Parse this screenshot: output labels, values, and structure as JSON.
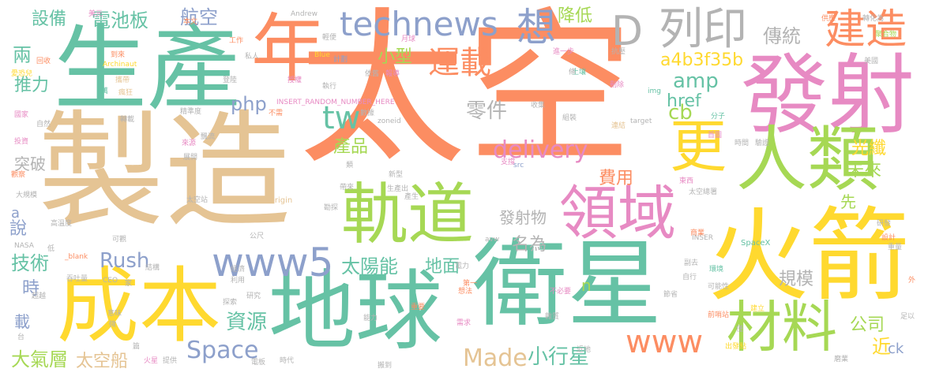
{
  "palette": [
    "#fc8d62",
    "#66c2a5",
    "#e5c494",
    "#a6d854",
    "#e78ac3",
    "#ffd92f",
    "#8da0cb",
    "#b3b3b3"
  ],
  "words": [
    {
      "text": "太空",
      "color": "#fc8d62"
    },
    {
      "text": "製造",
      "color": "#e5c494"
    },
    {
      "text": "衛星",
      "color": "#66c2a5"
    },
    {
      "text": "火箭",
      "color": "#ffd92f"
    },
    {
      "text": "地球",
      "color": "#66c2a5"
    },
    {
      "text": "生產",
      "color": "#66c2a5"
    },
    {
      "text": "發射",
      "color": "#e78ac3"
    },
    {
      "text": "成本",
      "color": "#ffd92f"
    },
    {
      "text": "人類",
      "color": "#a6d854"
    },
    {
      "text": "軌道",
      "color": "#a6d854"
    },
    {
      "text": "年",
      "color": "#fc8d62"
    },
    {
      "text": "更",
      "color": "#ffd92f"
    },
    {
      "text": "領域",
      "color": "#e78ac3"
    },
    {
      "text": "材料",
      "color": "#a6d854"
    },
    {
      "text": "建造",
      "color": "#fc8d62"
    },
    {
      "text": "列印",
      "color": "#b3b3b3"
    },
    {
      "text": "D",
      "color": "#b3b3b3"
    },
    {
      "text": "想",
      "color": "#8da0cb"
    },
    {
      "text": "technews",
      "color": "#8da0cb"
    },
    {
      "text": "www5",
      "color": "#8da0cb"
    },
    {
      "text": "運載",
      "color": "#fc8d62"
    },
    {
      "text": "www",
      "color": "#fc8d62"
    },
    {
      "text": "tw",
      "color": "#66c2a5"
    },
    {
      "text": "航空",
      "color": "#8da0cb"
    },
    {
      "text": "電池板",
      "color": "#66c2a5"
    },
    {
      "text": "設備",
      "color": "#66c2a5"
    },
    {
      "text": "Space",
      "color": "#8da0cb"
    },
    {
      "text": "Made",
      "color": "#e5c494"
    },
    {
      "text": "資源",
      "color": "#66c2a5"
    },
    {
      "text": "技術",
      "color": "#66c2a5"
    },
    {
      "text": "Rush",
      "color": "#8da0cb"
    },
    {
      "text": "delivery",
      "color": "#e78ac3"
    },
    {
      "text": "php",
      "color": "#8da0cb"
    },
    {
      "text": "cb",
      "color": "#a6d854"
    },
    {
      "text": "amp",
      "color": "#66c2a5"
    },
    {
      "text": "降低",
      "color": "#a6d854"
    },
    {
      "text": "小型",
      "color": "#a6d854"
    },
    {
      "text": "零件",
      "color": "#b3b3b3"
    },
    {
      "text": "產品",
      "color": "#a6d854"
    },
    {
      "text": "費用",
      "color": "#fc8d62"
    },
    {
      "text": "太陽能",
      "color": "#66c2a5"
    },
    {
      "text": "名為",
      "color": "#b3b3b3"
    },
    {
      "text": "地面",
      "color": "#66c2a5"
    },
    {
      "text": "小行星",
      "color": "#66c2a5"
    },
    {
      "text": "傳統",
      "color": "#b3b3b3"
    },
    {
      "text": "未來",
      "color": "#a6d854"
    },
    {
      "text": "光纖",
      "color": "#ffd92f"
    },
    {
      "text": "公司",
      "color": "#a6d854"
    },
    {
      "text": "規模",
      "color": "#b3b3b3"
    },
    {
      "text": "href",
      "color": "#66c2a5"
    },
    {
      "text": "a4b3f35b",
      "color": "#ffd92f"
    },
    {
      "text": "推力",
      "color": "#66c2a5"
    },
    {
      "text": "兩",
      "color": "#66c2a5"
    },
    {
      "text": "說",
      "color": "#8da0cb"
    },
    {
      "text": "時",
      "color": "#8da0cb"
    },
    {
      "text": "a",
      "color": "#8da0cb"
    },
    {
      "text": "載",
      "color": "#8da0cb"
    },
    {
      "text": "突破",
      "color": "#b3b3b3"
    },
    {
      "text": "大氣層",
      "color": "#a6d854"
    },
    {
      "text": "太空船",
      "color": "#e5c494"
    },
    {
      "text": "發射物",
      "color": "#b3b3b3"
    },
    {
      "text": "先",
      "color": "#a6d854"
    },
    {
      "text": "近",
      "color": "#ffd92f"
    },
    {
      "text": "ck",
      "color": "#8da0cb"
    },
    {
      "text": "n",
      "color": "#a6d854"
    },
    {
      "text": "INSERT_RANDOM_NUMBER_HERE",
      "color": "#e78ac3"
    },
    {
      "text": "Archinaut",
      "color": "#ffd92f"
    },
    {
      "text": "Origin",
      "color": "#e5c494"
    },
    {
      "text": "SpaceX",
      "color": "#66c2a5"
    },
    {
      "text": "Andrew",
      "color": "#b3b3b3"
    },
    {
      "text": "Blue",
      "color": "#ffd92f"
    },
    {
      "text": "zoneid",
      "color": "#b3b3b3"
    },
    {
      "text": "target",
      "color": "#b3b3b3"
    },
    {
      "text": "NASA",
      "color": "#b3b3b3"
    },
    {
      "text": "_blank",
      "color": "#fc8d62"
    },
    {
      "text": "CEO",
      "color": "#b3b3b3"
    },
    {
      "text": "src",
      "color": "#8da0cb"
    },
    {
      "text": "img",
      "color": "#66c2a5"
    },
    {
      "text": "avw",
      "color": "#b3b3b3"
    },
    {
      "text": "INSER",
      "color": "#b3b3b3"
    },
    {
      "text": "美元",
      "color": "#e78ac3"
    },
    {
      "text": "本文",
      "color": "#fc8d62"
    },
    {
      "text": "月球",
      "color": "#e78ac3"
    },
    {
      "text": "工作",
      "color": "#fc8d62"
    },
    {
      "text": "輕便",
      "color": "#b3b3b3"
    },
    {
      "text": "私人",
      "color": "#b3b3b3"
    },
    {
      "text": "計劃",
      "color": "#8da0cb"
    },
    {
      "text": "回收",
      "color": "#fc8d62"
    },
    {
      "text": "到來",
      "color": "#fc8d62"
    },
    {
      "text": "攜帶",
      "color": "#e5c494"
    },
    {
      "text": "瘋狂",
      "color": "#e5c494"
    },
    {
      "text": "愛恐兒",
      "color": "#ffd92f"
    },
    {
      "text": "萬",
      "color": "#66c2a5"
    },
    {
      "text": "登陸",
      "color": "#b3b3b3"
    },
    {
      "text": "授權",
      "color": "#e78ac3"
    },
    {
      "text": "執行",
      "color": "#b3b3b3"
    },
    {
      "text": "依舊",
      "color": "#b3b3b3"
    },
    {
      "text": "報導",
      "color": "#e78ac3"
    },
    {
      "text": "不需",
      "color": "#fc8d62"
    },
    {
      "text": "數據",
      "color": "#b3b3b3"
    },
    {
      "text": "收集",
      "color": "#b3b3b3"
    },
    {
      "text": "組裝",
      "color": "#b3b3b3"
    },
    {
      "text": "刪除",
      "color": "#e78ac3"
    },
    {
      "text": "土壤",
      "color": "#66c2a5"
    },
    {
      "text": "連結",
      "color": "#e5c494"
    },
    {
      "text": "進一步",
      "color": "#e78ac3"
    },
    {
      "text": "抗壓",
      "color": "#b3b3b3"
    },
    {
      "text": "供應",
      "color": "#fc8d62"
    },
    {
      "text": "轉化為",
      "color": "#b3b3b3"
    },
    {
      "text": "聚合物",
      "color": "#a6d854"
    },
    {
      "text": "美國",
      "color": "#b3b3b3"
    },
    {
      "text": "國家",
      "color": "#e78ac3"
    },
    {
      "text": "自然",
      "color": "#b3b3b3"
    },
    {
      "text": "轉載",
      "color": "#b3b3b3"
    },
    {
      "text": "精準度",
      "color": "#b3b3b3"
    },
    {
      "text": "來源",
      "color": "#e78ac3"
    },
    {
      "text": "飄流",
      "color": "#b3b3b3"
    },
    {
      "text": "展開",
      "color": "#b3b3b3"
    },
    {
      "text": "投資",
      "color": "#e78ac3"
    },
    {
      "text": "觀察",
      "color": "#fc8d62"
    },
    {
      "text": "能力",
      "color": "#b3b3b3"
    },
    {
      "text": "時間",
      "color": "#b3b3b3"
    },
    {
      "text": "驗證",
      "color": "#b3b3b3"
    },
    {
      "text": "首圖",
      "color": "#e78ac3"
    },
    {
      "text": "分子",
      "color": "#66c2a5"
    },
    {
      "text": "東西",
      "color": "#e78ac3"
    },
    {
      "text": "重量",
      "color": "#b3b3b3"
    },
    {
      "text": "研發",
      "color": "#b3b3b3"
    },
    {
      "text": "設計",
      "color": "#fc8d62"
    },
    {
      "text": "太空總署",
      "color": "#b3b3b3"
    },
    {
      "text": "商業",
      "color": "#fc8d62"
    },
    {
      "text": "可能性",
      "color": "#b3b3b3"
    },
    {
      "text": "環境",
      "color": "#66c2a5"
    },
    {
      "text": "自行",
      "color": "#b3b3b3"
    },
    {
      "text": "建立",
      "color": "#ffd92f"
    },
    {
      "text": "外",
      "color": "#fc8d62"
    },
    {
      "text": "前哨站",
      "color": "#fc8d62"
    },
    {
      "text": "節省",
      "color": "#b3b3b3"
    },
    {
      "text": "出發點",
      "color": "#ffd92f"
    },
    {
      "text": "磨業",
      "color": "#b3b3b3"
    },
    {
      "text": "僅",
      "color": "#b3b3b3"
    },
    {
      "text": "足以",
      "color": "#b3b3b3"
    },
    {
      "text": "大規模",
      "color": "#b3b3b3"
    },
    {
      "text": "太空站",
      "color": "#b3b3b3"
    },
    {
      "text": "高溫度",
      "color": "#b3b3b3"
    },
    {
      "text": "吞吐量",
      "color": "#b3b3b3"
    },
    {
      "text": "利用",
      "color": "#b3b3b3"
    },
    {
      "text": "電力",
      "color": "#b3b3b3"
    },
    {
      "text": "第一",
      "color": "#fc8d62"
    },
    {
      "text": "不必要",
      "color": "#e78ac3"
    },
    {
      "text": "想法",
      "color": "#fc8d62"
    },
    {
      "text": "探索",
      "color": "#b3b3b3"
    },
    {
      "text": "研究",
      "color": "#b3b3b3"
    },
    {
      "text": "需求",
      "color": "#e78ac3"
    },
    {
      "text": "雜質",
      "color": "#b3b3b3"
    },
    {
      "text": "火星",
      "color": "#e78ac3"
    },
    {
      "text": "提供",
      "color": "#b3b3b3"
    },
    {
      "text": "電板",
      "color": "#b3b3b3"
    },
    {
      "text": "時代",
      "color": "#b3b3b3"
    },
    {
      "text": "搬到",
      "color": "#b3b3b3"
    },
    {
      "text": "新型",
      "color": "#b3b3b3"
    },
    {
      "text": "帶來",
      "color": "#b3b3b3"
    },
    {
      "text": "生產出",
      "color": "#b3b3b3"
    },
    {
      "text": "勘探",
      "color": "#b3b3b3"
    },
    {
      "text": "公尺",
      "color": "#b3b3b3"
    },
    {
      "text": "經濟",
      "color": "#b3b3b3"
    },
    {
      "text": "意味",
      "color": "#b3b3b3"
    },
    {
      "text": "結構",
      "color": "#b3b3b3"
    },
    {
      "text": "可觀",
      "color": "#b3b3b3"
    },
    {
      "text": "低",
      "color": "#b3b3b3"
    },
    {
      "text": "超越",
      "color": "#b3b3b3"
    },
    {
      "text": "台",
      "color": "#b3b3b3"
    },
    {
      "text": "家",
      "color": "#b3b3b3"
    },
    {
      "text": "微",
      "color": "#b3b3b3"
    },
    {
      "text": "類",
      "color": "#b3b3b3"
    },
    {
      "text": "條",
      "color": "#b3b3b3"
    },
    {
      "text": "篇",
      "color": "#b3b3b3"
    },
    {
      "text": "重要",
      "color": "#fc8d62"
    },
    {
      "text": "副去",
      "color": "#b3b3b3"
    },
    {
      "text": "近地",
      "color": "#b3b3b3"
    },
    {
      "text": "支撐",
      "color": "#e78ac3"
    },
    {
      "text": "產生",
      "color": "#b3b3b3"
    }
  ]
}
